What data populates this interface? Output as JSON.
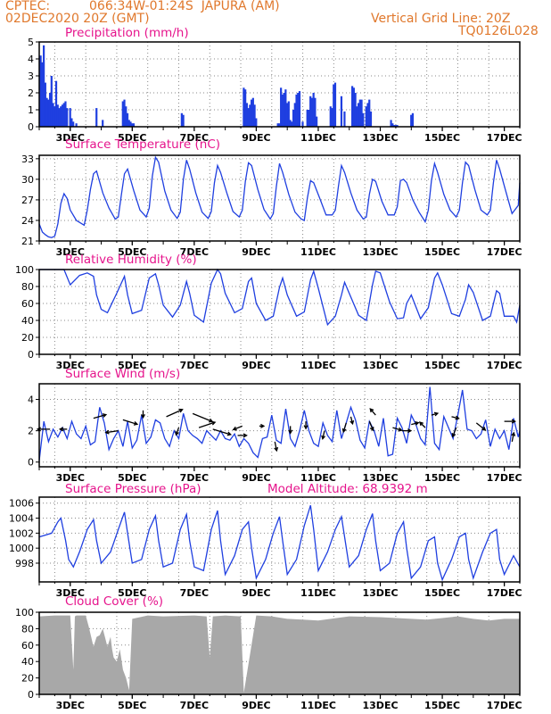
{
  "header": {
    "source": "CPTEC:",
    "location": "066:34W-01:24S  JAPURA (AM)",
    "datetime": "02DEC2020 20Z (GMT)",
    "grid_note": "Vertical Grid Line: 20Z",
    "model_code": "TQ0126L028"
  },
  "colors": {
    "header": "#e0782c",
    "title": "#e6148c",
    "series": "#1f3fe0",
    "cloud": "#a8a8a8",
    "grid": "#888888"
  },
  "chart_data": [
    {
      "type": "bar",
      "title": "Precipitation (mm/h)",
      "ylim": [
        0,
        5
      ],
      "yticks": [
        0,
        1,
        2,
        3,
        4,
        5
      ],
      "xlim": [
        0,
        15.5
      ],
      "xticks": [
        "3DEC",
        "5DEC",
        "7DEC",
        "9DEC",
        "11DEC",
        "13DEC",
        "15DEC",
        "17DEC"
      ],
      "note": "x in days since start of plot; values in mm/h",
      "x": [
        0.05,
        0.1,
        0.15,
        0.2,
        0.25,
        0.3,
        0.35,
        0.4,
        0.45,
        0.5,
        0.55,
        0.6,
        0.65,
        0.7,
        0.75,
        0.8,
        0.85,
        0.9,
        1.0,
        1.05,
        1.1,
        1.2,
        1.85,
        2.05,
        2.7,
        2.75,
        2.8,
        2.85,
        2.9,
        2.95,
        3.0,
        3.05,
        4.6,
        4.65,
        6.6,
        6.65,
        6.7,
        6.75,
        6.8,
        6.85,
        6.9,
        6.95,
        7.0,
        7.7,
        7.75,
        7.8,
        7.85,
        7.9,
        7.95,
        8.0,
        8.05,
        8.1,
        8.15,
        8.2,
        8.25,
        8.3,
        8.35,
        8.4,
        8.5,
        8.65,
        8.7,
        8.75,
        8.8,
        8.85,
        8.9,
        8.95,
        9.4,
        9.45,
        9.5,
        9.55,
        9.75,
        9.85,
        10.1,
        10.15,
        10.2,
        10.25,
        10.3,
        10.35,
        10.4,
        10.45,
        10.55,
        10.6,
        10.65,
        10.7,
        11.35,
        11.4,
        11.45,
        11.5,
        11.55,
        12.0,
        12.05
      ],
      "values": [
        4.2,
        3.8,
        4.8,
        2.6,
        1.7,
        1.6,
        2.0,
        3.0,
        1.4,
        1.2,
        2.7,
        1.3,
        1.1,
        1.2,
        1.3,
        1.4,
        1.5,
        1.1,
        1.1,
        0.5,
        0.3,
        0.2,
        1.1,
        0.4,
        1.5,
        1.6,
        1.2,
        0.8,
        0.4,
        0.3,
        0.2,
        0.2,
        0.8,
        0.7,
        2.3,
        2.2,
        1.4,
        1.1,
        1.3,
        1.6,
        1.7,
        1.3,
        0.5,
        0.2,
        0.2,
        2.3,
        1.9,
        2.0,
        2.2,
        1.4,
        1.5,
        0.4,
        0.3,
        1.0,
        1.4,
        1.9,
        2.0,
        2.1,
        0.3,
        1.0,
        1.0,
        1.8,
        1.7,
        2.0,
        1.7,
        0.6,
        1.2,
        1.1,
        2.5,
        2.6,
        1.8,
        0.9,
        2.4,
        2.3,
        2.0,
        1.2,
        1.4,
        1.6,
        1.6,
        0.8,
        1.2,
        1.4,
        1.6,
        0.9,
        0.4,
        0.2,
        0.1,
        0.1,
        0.1,
        0.7,
        0.8
      ]
    },
    {
      "type": "line",
      "title": "Surface Temperature (nC)",
      "ylim": [
        21,
        33.5
      ],
      "yticks": [
        21,
        24,
        27,
        30,
        33
      ],
      "xlim": [
        0,
        15.5
      ],
      "xticks": [
        "3DEC",
        "5DEC",
        "7DEC",
        "9DEC",
        "11DEC",
        "13DEC",
        "15DEC",
        "17DEC"
      ],
      "x": [
        0,
        0.1,
        0.2,
        0.3,
        0.4,
        0.5,
        0.6,
        0.7,
        0.8,
        0.9,
        1.0,
        1.2,
        1.45,
        1.55,
        1.65,
        1.75,
        1.85,
        2.05,
        2.25,
        2.45,
        2.55,
        2.65,
        2.75,
        2.85,
        3.05,
        3.25,
        3.45,
        3.55,
        3.65,
        3.75,
        3.85,
        4.05,
        4.25,
        4.45,
        4.55,
        4.65,
        4.75,
        4.85,
        5.05,
        5.25,
        5.45,
        5.55,
        5.65,
        5.75,
        5.85,
        6.05,
        6.25,
        6.45,
        6.55,
        6.65,
        6.75,
        6.85,
        7.05,
        7.25,
        7.45,
        7.55,
        7.65,
        7.75,
        7.85,
        8.05,
        8.25,
        8.45,
        8.55,
        8.65,
        8.75,
        8.85,
        9.05,
        9.25,
        9.45,
        9.55,
        9.65,
        9.75,
        9.85,
        10.05,
        10.25,
        10.45,
        10.55,
        10.65,
        10.75,
        10.85,
        11.05,
        11.25,
        11.45,
        11.55,
        11.65,
        11.75,
        11.85,
        12.05,
        12.25,
        12.45,
        12.55,
        12.65,
        12.75,
        12.85,
        13.05,
        13.25,
        13.45,
        13.55,
        13.65,
        13.75,
        13.85,
        14.05,
        14.25,
        14.45,
        14.55,
        14.65,
        14.75,
        14.85,
        15.05,
        15.25,
        15.45,
        15.5
      ],
      "values": [
        23.5,
        22.3,
        21.9,
        21.6,
        21.5,
        21.7,
        23.5,
        26.5,
        27.9,
        27.2,
        25.5,
        24.0,
        23.3,
        25.5,
        28.5,
        30.8,
        31.2,
        28.0,
        25.8,
        24.2,
        24.5,
        27.8,
        30.8,
        31.5,
        28.3,
        25.5,
        24.5,
        25.8,
        30.5,
        33.2,
        32.5,
        28.3,
        25.5,
        24.3,
        25.2,
        30.0,
        32.8,
        31.5,
        28.0,
        25.2,
        24.3,
        25.3,
        29.5,
        32.0,
        31.0,
        28.0,
        25.3,
        24.5,
        25.5,
        29.7,
        32.4,
        32.0,
        28.5,
        25.6,
        24.2,
        25.0,
        29.0,
        32.3,
        31.0,
        27.8,
        25.2,
        24.2,
        24.0,
        27.3,
        29.8,
        29.5,
        27.2,
        24.8,
        24.8,
        25.5,
        29.0,
        32.0,
        31.0,
        28.0,
        25.5,
        24.2,
        24.5,
        27.8,
        30.0,
        29.7,
        26.8,
        24.8,
        24.8,
        26.0,
        29.8,
        30.0,
        29.5,
        27.0,
        25.2,
        23.8,
        25.5,
        29.8,
        32.3,
        31.0,
        27.8,
        25.5,
        24.5,
        25.5,
        29.5,
        32.5,
        32.0,
        28.5,
        25.5,
        24.8,
        25.5,
        29.5,
        32.8,
        31.5,
        28.2,
        25.0,
        26.2,
        29.5
      ]
    },
    {
      "type": "line",
      "title": "Relative Humidity (%)",
      "ylim": [
        0,
        100
      ],
      "yticks": [
        0,
        20,
        40,
        60,
        80,
        100
      ],
      "xlim": [
        0,
        15.5
      ],
      "xticks": [
        "3DEC",
        "5DEC",
        "7DEC",
        "9DEC",
        "11DEC",
        "13DEC",
        "15DEC",
        "17DEC"
      ],
      "x": [
        0,
        0.5,
        0.8,
        1.0,
        1.3,
        1.55,
        1.75,
        1.85,
        2.0,
        2.2,
        2.5,
        2.75,
        2.85,
        3.0,
        3.3,
        3.55,
        3.75,
        3.85,
        4.0,
        4.3,
        4.55,
        4.75,
        4.85,
        5.0,
        5.3,
        5.55,
        5.75,
        5.85,
        6.0,
        6.3,
        6.55,
        6.75,
        6.85,
        7.0,
        7.3,
        7.55,
        7.75,
        7.85,
        8.0,
        8.3,
        8.55,
        8.75,
        8.85,
        9.0,
        9.3,
        9.55,
        9.75,
        9.85,
        10.0,
        10.3,
        10.55,
        10.75,
        10.85,
        11.0,
        11.3,
        11.55,
        11.75,
        11.85,
        12.0,
        12.3,
        12.55,
        12.75,
        12.85,
        13.0,
        13.3,
        13.55,
        13.75,
        13.85,
        14.0,
        14.3,
        14.55,
        14.75,
        14.85,
        15.0,
        15.3,
        15.4,
        15.5
      ],
      "values": [
        100,
        100,
        100,
        82,
        93,
        96,
        92,
        70,
        53,
        49,
        72,
        92,
        70,
        48,
        52,
        90,
        95,
        82,
        58,
        44,
        58,
        86,
        72,
        46,
        38,
        84,
        100,
        95,
        72,
        49,
        54,
        86,
        90,
        60,
        40,
        45,
        79,
        90,
        70,
        45,
        50,
        88,
        98,
        78,
        35,
        45,
        70,
        85,
        72,
        46,
        40,
        82,
        98,
        96,
        62,
        42,
        43,
        60,
        70,
        42,
        55,
        90,
        96,
        82,
        48,
        45,
        65,
        82,
        73,
        40,
        45,
        75,
        72,
        45,
        45,
        38,
        58
      ]
    },
    {
      "type": "line",
      "title": "Surface Wind (m/s)",
      "ylim": [
        -0.3,
        5
      ],
      "yticks": [
        0,
        2,
        4
      ],
      "xlim": [
        0,
        15.5
      ],
      "xticks": [
        "3DEC",
        "5DEC",
        "7DEC",
        "9DEC",
        "11DEC",
        "13DEC",
        "15DEC",
        "17DEC"
      ],
      "x": [
        0,
        0.15,
        0.3,
        0.45,
        0.6,
        0.75,
        0.9,
        1.05,
        1.2,
        1.35,
        1.5,
        1.65,
        1.8,
        1.95,
        2.1,
        2.25,
        2.4,
        2.55,
        2.7,
        2.85,
        3.0,
        3.15,
        3.3,
        3.45,
        3.6,
        3.75,
        3.9,
        4.05,
        4.2,
        4.35,
        4.5,
        4.65,
        4.8,
        4.95,
        5.1,
        5.25,
        5.4,
        5.55,
        5.7,
        5.85,
        6.0,
        6.15,
        6.3,
        6.45,
        6.6,
        6.75,
        6.9,
        7.05,
        7.2,
        7.35,
        7.5,
        7.65,
        7.8,
        7.95,
        8.1,
        8.25,
        8.4,
        8.55,
        8.7,
        8.85,
        9.0,
        9.15,
        9.3,
        9.45,
        9.6,
        9.75,
        9.9,
        10.05,
        10.2,
        10.35,
        10.5,
        10.65,
        10.8,
        10.95,
        11.1,
        11.25,
        11.4,
        11.55,
        11.7,
        11.85,
        12.0,
        12.15,
        12.3,
        12.45,
        12.6,
        12.75,
        12.9,
        13.05,
        13.2,
        13.35,
        13.5,
        13.65,
        13.8,
        13.95,
        14.1,
        14.25,
        14.4,
        14.55,
        14.7,
        14.85,
        15.0,
        15.15,
        15.3,
        15.45,
        15.5
      ],
      "values": [
        0.1,
        2.6,
        1.3,
        2.1,
        1.6,
        2.2,
        1.5,
        2.6,
        1.8,
        1.5,
        2.3,
        1.1,
        1.3,
        3.5,
        2.5,
        0.8,
        1.5,
        2.0,
        1.0,
        2.6,
        0.9,
        1.4,
        3.0,
        1.2,
        1.6,
        2.7,
        2.5,
        1.5,
        1.0,
        2.0,
        1.5,
        3.1,
        2.0,
        1.7,
        1.5,
        1.2,
        2.0,
        1.7,
        1.4,
        2.0,
        1.5,
        1.4,
        1.8,
        1.0,
        1.5,
        1.2,
        0.6,
        0.3,
        1.5,
        1.6,
        3.0,
        1.4,
        1.2,
        3.4,
        1.5,
        1.0,
        2.0,
        3.3,
        2.0,
        1.2,
        1.0,
        2.5,
        1.7,
        1.3,
        3.3,
        1.5,
        2.5,
        3.5,
        2.7,
        1.4,
        0.9,
        2.6,
        2.0,
        1.0,
        2.8,
        0.4,
        0.5,
        2.8,
        2.2,
        1.2,
        3.0,
        2.4,
        1.5,
        1.1,
        4.8,
        1.2,
        0.8,
        2.9,
        2.2,
        1.5,
        3.0,
        4.6,
        2.1,
        2.0,
        1.5,
        1.8,
        2.7,
        1.0,
        2.1,
        1.5,
        2.0,
        0.8,
        2.8,
        1.6,
        2.0
      ]
    },
    {
      "type": "line",
      "title": "Surface Pressure (hPa)",
      "subtitle": "Model Altitude: 68.9392 m",
      "ylim": [
        995.5,
        1006.8
      ],
      "yticks": [
        998,
        1000,
        1002,
        1004,
        1006
      ],
      "xlim": [
        0,
        15.5
      ],
      "xticks": [
        "3DEC",
        "5DEC",
        "7DEC",
        "9DEC",
        "11DEC",
        "13DEC",
        "15DEC",
        "17DEC"
      ],
      "x": [
        0,
        0.4,
        0.6,
        0.7,
        0.85,
        0.95,
        1.1,
        1.3,
        1.55,
        1.75,
        1.85,
        2.0,
        2.3,
        2.55,
        2.75,
        2.85,
        3.0,
        3.3,
        3.55,
        3.75,
        3.85,
        4.0,
        4.3,
        4.55,
        4.75,
        4.85,
        5.0,
        5.3,
        5.55,
        5.75,
        5.85,
        6.0,
        6.3,
        6.55,
        6.75,
        6.85,
        7.0,
        7.3,
        7.55,
        7.75,
        7.85,
        8.0,
        8.3,
        8.55,
        8.75,
        8.85,
        9.0,
        9.3,
        9.55,
        9.75,
        9.85,
        10.0,
        10.3,
        10.55,
        10.75,
        10.85,
        11.0,
        11.3,
        11.55,
        11.75,
        11.85,
        12.0,
        12.3,
        12.55,
        12.75,
        12.85,
        13.0,
        13.3,
        13.55,
        13.75,
        13.85,
        14.0,
        14.3,
        14.55,
        14.75,
        14.85,
        15.0,
        15.3,
        15.5
      ],
      "values": [
        1001.5,
        1002.0,
        1003.5,
        1004.0,
        1001.0,
        998.5,
        997.5,
        999.5,
        1002.5,
        1003.8,
        1001.0,
        998.0,
        999.5,
        1002.5,
        1004.8,
        1002.0,
        998.0,
        998.5,
        1002.5,
        1004.3,
        1001.0,
        997.5,
        998.0,
        1002.5,
        1004.5,
        1001.0,
        997.5,
        997.0,
        1002.5,
        1005.0,
        1001.0,
        996.5,
        999.0,
        1002.5,
        1003.5,
        1000.0,
        996.0,
        998.5,
        1002.0,
        1004.2,
        1001.0,
        996.5,
        998.5,
        1003.0,
        1005.7,
        1002.5,
        997.0,
        999.5,
        1002.5,
        1004.2,
        1001.5,
        997.5,
        999.0,
        1002.5,
        1004.6,
        1001.0,
        997.0,
        998.0,
        1002.0,
        1003.5,
        1000.0,
        996.0,
        997.5,
        1001.0,
        1001.5,
        998.0,
        995.8,
        998.5,
        1001.5,
        1002.0,
        998.5,
        996.0,
        999.5,
        1002.0,
        1002.5,
        998.5,
        996.5,
        999.0,
        997.5
      ]
    },
    {
      "type": "area",
      "title": "Cloud Cover (%)",
      "ylim": [
        0,
        100
      ],
      "yticks": [
        0,
        20,
        40,
        60,
        80,
        100
      ],
      "xlim": [
        0,
        15.5
      ],
      "xticks": [
        "3DEC",
        "5DEC",
        "7DEC",
        "9DEC",
        "11DEC",
        "13DEC",
        "15DEC",
        "17DEC"
      ],
      "x": [
        0,
        0.5,
        1.0,
        1.1,
        1.15,
        1.2,
        1.5,
        1.6,
        1.75,
        1.85,
        1.95,
        2.05,
        2.2,
        2.3,
        2.35,
        2.4,
        2.5,
        2.6,
        2.7,
        2.8,
        2.9,
        3.0,
        3.5,
        4.0,
        5.0,
        5.4,
        5.5,
        5.6,
        6.0,
        6.5,
        6.6,
        7.0,
        7.5,
        8.0,
        8.5,
        9.0,
        10.0,
        11.0,
        12.0,
        12.5,
        13.0,
        13.5,
        14.0,
        14.5,
        15.0,
        15.5
      ],
      "values": [
        95,
        96,
        96,
        30,
        95,
        96,
        96,
        82,
        58,
        70,
        72,
        80,
        58,
        70,
        55,
        45,
        40,
        55,
        30,
        20,
        5,
        92,
        96,
        95,
        96,
        95,
        45,
        95,
        96,
        95,
        2,
        96,
        95,
        92,
        91,
        90,
        95,
        94,
        92,
        91,
        93,
        95,
        92,
        90,
        92,
        92
      ]
    }
  ],
  "wind_arrows": [
    {
      "x": 0.35,
      "y": 2.1,
      "dx": -14,
      "dy": 0
    },
    {
      "x": 0.9,
      "y": 2.1,
      "dx": -8,
      "dy": 0
    },
    {
      "x": 1.75,
      "y": 2.8,
      "dx": 14,
      "dy": -4
    },
    {
      "x": 2.55,
      "y": 2.0,
      "dx": -14,
      "dy": 2
    },
    {
      "x": 2.7,
      "y": 2.7,
      "dx": 16,
      "dy": 5
    },
    {
      "x": 3.35,
      "y": 3.3,
      "dx": 0,
      "dy": 8
    },
    {
      "x": 4.1,
      "y": 2.9,
      "dx": 18,
      "dy": -8
    },
    {
      "x": 4.5,
      "y": 2.2,
      "dx": -3,
      "dy": 8
    },
    {
      "x": 4.95,
      "y": 3.1,
      "dx": 22,
      "dy": 9
    },
    {
      "x": 5.15,
      "y": 2.2,
      "dx": 18,
      "dy": -6
    },
    {
      "x": 5.6,
      "y": 2.1,
      "dx": 20,
      "dy": 6
    },
    {
      "x": 6.4,
      "y": 1.7,
      "dx": 10,
      "dy": 0
    },
    {
      "x": 6.55,
      "y": 2.3,
      "dx": -10,
      "dy": 4
    },
    {
      "x": 7.1,
      "y": 2.3,
      "dx": 5,
      "dy": 0
    },
    {
      "x": 7.6,
      "y": 1.3,
      "dx": 2,
      "dy": 10
    },
    {
      "x": 8.1,
      "y": 2.3,
      "dx": 0,
      "dy": 8
    },
    {
      "x": 8.6,
      "y": 2.6,
      "dx": 0,
      "dy": 8
    },
    {
      "x": 9.2,
      "y": 2.0,
      "dx": -2,
      "dy": 9
    },
    {
      "x": 9.9,
      "y": 2.5,
      "dx": -3,
      "dy": 10
    },
    {
      "x": 10.05,
      "y": 2.9,
      "dx": 2,
      "dy": 8
    },
    {
      "x": 10.65,
      "y": 2.6,
      "dx": 4,
      "dy": 10
    },
    {
      "x": 10.85,
      "y": 3.0,
      "dx": -6,
      "dy": -7
    },
    {
      "x": 11.4,
      "y": 2.2,
      "dx": 10,
      "dy": 3
    },
    {
      "x": 11.7,
      "y": 2.0,
      "dx": 10,
      "dy": 0
    },
    {
      "x": 12.0,
      "y": 2.4,
      "dx": 8,
      "dy": -2
    },
    {
      "x": 12.45,
      "y": 2.2,
      "dx": -6,
      "dy": -6
    },
    {
      "x": 12.65,
      "y": 3.0,
      "dx": 7,
      "dy": -2
    },
    {
      "x": 13.3,
      "y": 2.9,
      "dx": 8,
      "dy": 2
    },
    {
      "x": 13.45,
      "y": 2.2,
      "dx": -4,
      "dy": 10
    },
    {
      "x": 14.1,
      "y": 2.5,
      "dx": 10,
      "dy": 8
    },
    {
      "x": 15.0,
      "y": 2.6,
      "dx": 12,
      "dy": 0
    },
    {
      "x": 15.25,
      "y": 1.3,
      "dx": 2,
      "dy": -10
    }
  ]
}
